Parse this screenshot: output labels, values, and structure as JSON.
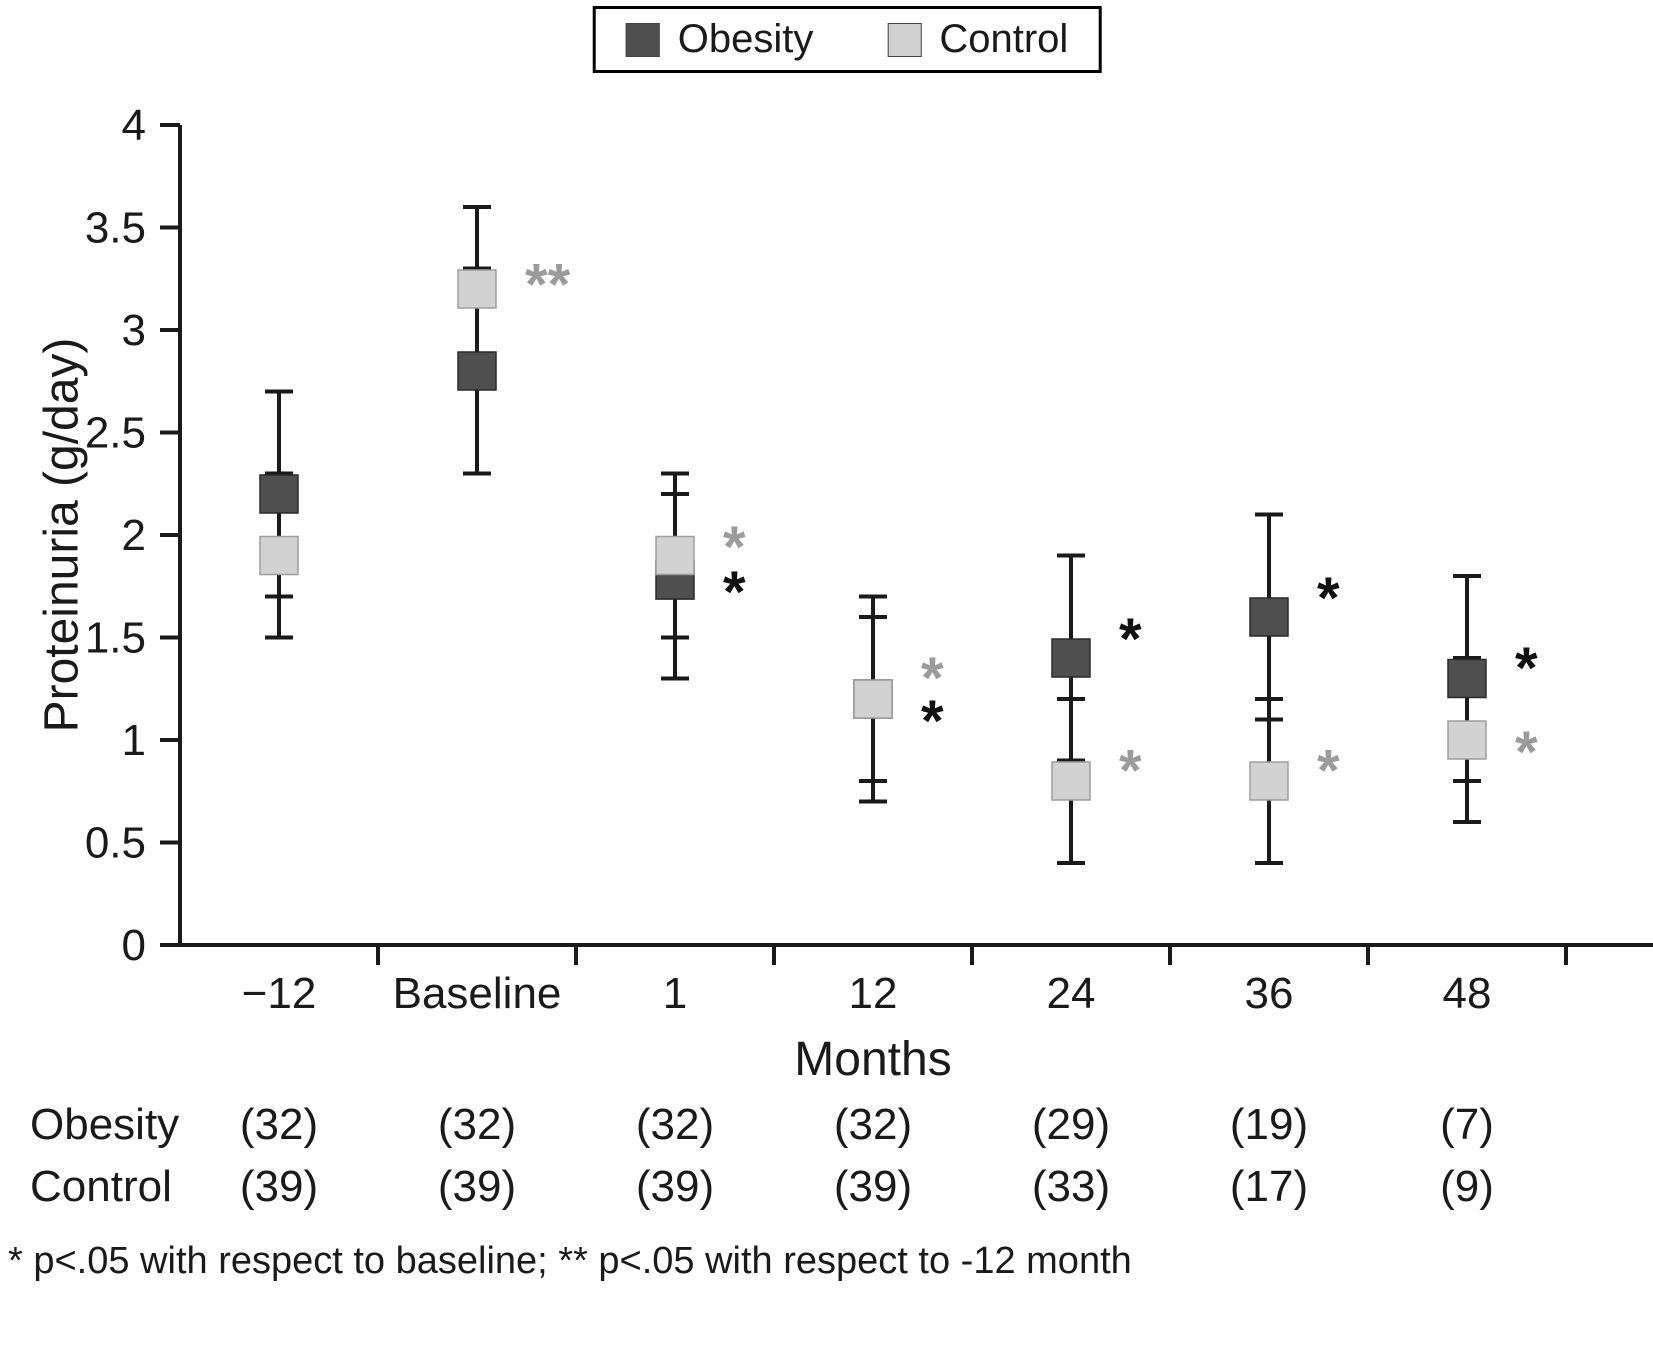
{
  "legend": {
    "items": [
      {
        "label": "Obesity",
        "color": "#4f4f4f"
      },
      {
        "label": "Control",
        "color": "#d2d2d2"
      }
    ]
  },
  "chart_data": {
    "type": "scatter",
    "subtype": "point-with-error-bars",
    "title": "",
    "xlabel": "Months",
    "ylabel": "Proteinuria (g/day)",
    "ylim": [
      0,
      4
    ],
    "ytick_labels": [
      "0",
      "0.5",
      "1",
      "1.5",
      "2",
      "2.5",
      "3",
      "3.5",
      "4"
    ],
    "categories": [
      "−12",
      "Baseline",
      "1",
      "12",
      "24",
      "36",
      "48"
    ],
    "grid": false,
    "legend_position": "top-center",
    "series": [
      {
        "name": "Obesity",
        "color": "#4f4f4f",
        "edge": "#2a2a2a",
        "values": [
          2.2,
          2.8,
          1.78,
          1.2,
          1.4,
          1.6,
          1.3
        ],
        "err_lo": [
          1.7,
          2.3,
          1.3,
          0.8,
          0.9,
          1.1,
          0.8
        ],
        "err_hi": [
          2.7,
          3.3,
          2.2,
          1.6,
          1.9,
          2.1,
          1.8
        ]
      },
      {
        "name": "Control",
        "color": "#d2d2d2",
        "edge": "#9e9e9e",
        "values": [
          1.9,
          3.2,
          1.9,
          1.2,
          0.8,
          0.8,
          1.0
        ],
        "err_lo": [
          1.5,
          2.8,
          1.5,
          0.7,
          0.4,
          0.4,
          0.6
        ],
        "err_hi": [
          2.3,
          3.6,
          2.3,
          1.7,
          1.2,
          1.2,
          1.4
        ]
      }
    ],
    "annotations": [
      {
        "cat": 1,
        "value": 3.3,
        "text": "**",
        "tone": "gray"
      },
      {
        "cat": 2,
        "value": 2.02,
        "text": "*",
        "tone": "gray"
      },
      {
        "cat": 2,
        "value": 1.8,
        "text": "*",
        "tone": "black"
      },
      {
        "cat": 3,
        "value": 1.38,
        "text": "*",
        "tone": "gray"
      },
      {
        "cat": 3,
        "value": 1.17,
        "text": "*",
        "tone": "black"
      },
      {
        "cat": 4,
        "value": 1.57,
        "text": "*",
        "tone": "black"
      },
      {
        "cat": 4,
        "value": 0.93,
        "text": "*",
        "tone": "gray"
      },
      {
        "cat": 5,
        "value": 1.77,
        "text": "*",
        "tone": "black"
      },
      {
        "cat": 5,
        "value": 0.93,
        "text": "*",
        "tone": "gray"
      },
      {
        "cat": 6,
        "value": 1.43,
        "text": "*",
        "tone": "black"
      },
      {
        "cat": 6,
        "value": 1.02,
        "text": "*",
        "tone": "gray"
      }
    ],
    "colors": {
      "black_star": "#111111",
      "gray_star": "#9b9b9b",
      "axis": "#1a1a1a"
    }
  },
  "table": {
    "rows": [
      {
        "label": "Obesity",
        "values": [
          "(32)",
          "(32)",
          "(32)",
          "(32)",
          "(29)",
          "(19)",
          "(7)"
        ]
      },
      {
        "label": "Control",
        "values": [
          "(39)",
          "(39)",
          "(39)",
          "(39)",
          "(33)",
          "(17)",
          "(9)"
        ]
      }
    ]
  },
  "footnote": "* p<.05 with respect to baseline; ** p<.05 with respect to -12 month"
}
